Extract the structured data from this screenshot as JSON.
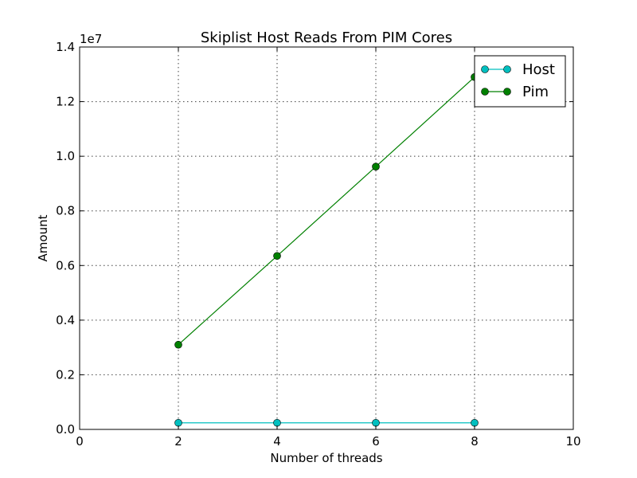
{
  "chart_data": {
    "type": "line",
    "title": "Skiplist Host Reads From PIM Cores",
    "xlabel": "Number of threads",
    "ylabel": "Amount",
    "y_offset_label": "1e7",
    "xlim": [
      0,
      10
    ],
    "ylim": [
      0,
      14000000
    ],
    "xticks": [
      0,
      2,
      4,
      6,
      8,
      10
    ],
    "xtick_labels": [
      "0",
      "2",
      "4",
      "6",
      "8",
      "10"
    ],
    "yticks": [
      0,
      2000000,
      4000000,
      6000000,
      8000000,
      10000000,
      12000000,
      14000000
    ],
    "ytick_labels": [
      "0.0",
      "0.2",
      "0.4",
      "0.6",
      "0.8",
      "1.0",
      "1.2",
      "1.4"
    ],
    "grid": true,
    "legend_position": "top-right",
    "x": [
      2,
      4,
      6,
      8
    ],
    "series": [
      {
        "name": "Host",
        "values": [
          240000,
          240000,
          240000,
          240000
        ],
        "color": "#00BFBF",
        "marker": "circle"
      },
      {
        "name": "Pim",
        "values": [
          3100000,
          6350000,
          9620000,
          12900000
        ],
        "color": "#008000",
        "marker": "circle"
      }
    ]
  }
}
